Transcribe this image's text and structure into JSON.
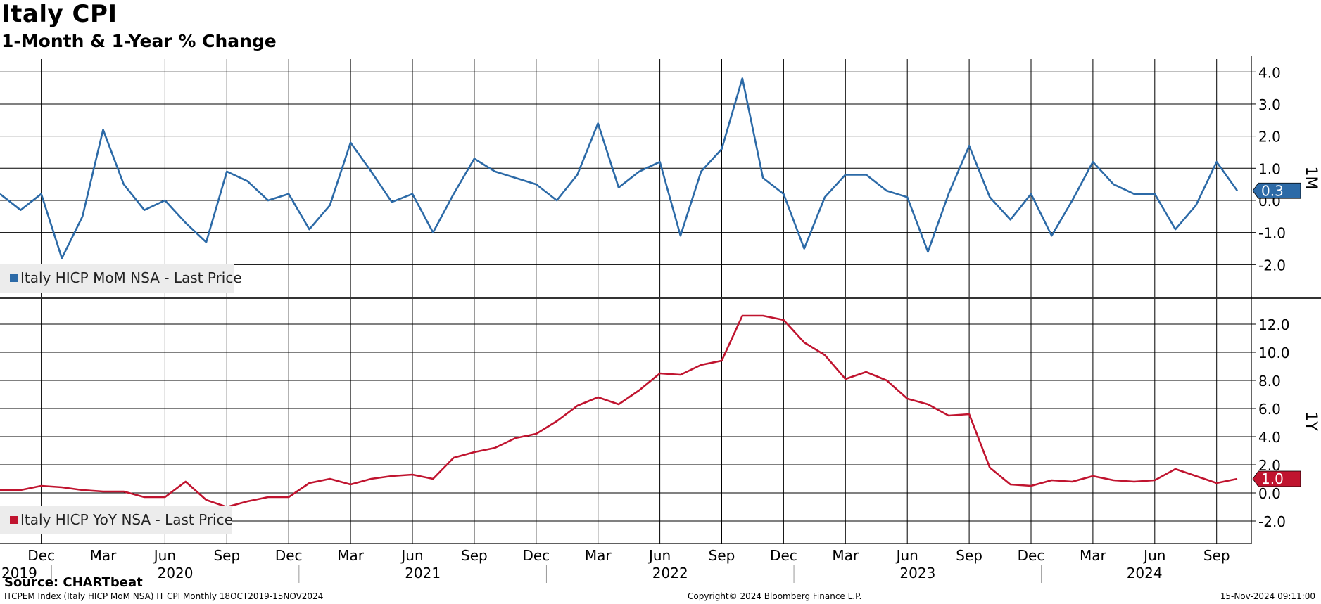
{
  "header": {
    "title": "Italy CPI",
    "subtitle": "1-Month & 1-Year % Change"
  },
  "footer": {
    "source": "Source: CHARTbeat",
    "query": "ITCPEM Index (Italy HICP MoM NSA) IT CPI  Monthly 18OCT2019-15NOV2024",
    "copyright": "Copyright© 2024 Bloomberg Finance L.P.",
    "timestamp": "15-Nov-2024 09:11:00"
  },
  "colors": {
    "mom": "#2c6aa7",
    "yoy": "#c0142f",
    "grid": "#000000"
  },
  "chart_data": [
    {
      "type": "line",
      "panel_label": "1M",
      "legend": "Italy HICP MoM NSA - Last Price",
      "legend_position": "bottom-left",
      "last_value_label": "0.3",
      "ylim": [
        -3.0,
        4.4
      ],
      "yticks": [
        {
          "value": 4.0,
          "label": "4.0"
        },
        {
          "value": 3.0,
          "label": "3.0"
        },
        {
          "value": 2.0,
          "label": "2.0"
        },
        {
          "value": 1.0,
          "label": "1.0"
        },
        {
          "value": 0.0,
          "label": "0.0"
        },
        {
          "value": -1.0,
          "label": "-1.0"
        },
        {
          "value": -2.0,
          "label": "-2.0"
        }
      ],
      "grid": true,
      "series": [
        {
          "name": "Italy HICP MoM NSA - Last Price",
          "start": "2019-10",
          "values": [
            0.2,
            -0.3,
            0.2,
            -1.8,
            -0.5,
            2.2,
            0.5,
            -0.3,
            0.0,
            -0.7,
            -1.3,
            0.9,
            0.6,
            0.0,
            0.2,
            -0.9,
            -0.15,
            1.8,
            0.9,
            -0.05,
            0.2,
            -1.0,
            0.2,
            1.3,
            0.9,
            0.7,
            0.5,
            0.0,
            0.8,
            2.4,
            0.4,
            0.9,
            1.2,
            -1.1,
            0.9,
            1.6,
            3.8,
            0.7,
            0.2,
            -1.5,
            0.1,
            0.8,
            0.8,
            0.3,
            0.1,
            -1.6,
            0.2,
            1.7,
            0.1,
            -0.6,
            0.2,
            -1.1,
            0.0,
            1.2,
            0.5,
            0.2,
            0.2,
            -0.9,
            -0.15,
            1.2,
            0.3
          ]
        }
      ]
    },
    {
      "type": "line",
      "panel_label": "1Y",
      "legend": "Italy HICP YoY NSA - Last Price",
      "legend_position": "bottom-left",
      "last_value_label": "1.0",
      "ylim": [
        -3.6,
        13.8
      ],
      "yticks": [
        {
          "value": 12.0,
          "label": "12.0"
        },
        {
          "value": 10.0,
          "label": "10.0"
        },
        {
          "value": 8.0,
          "label": "8.0"
        },
        {
          "value": 6.0,
          "label": "6.0"
        },
        {
          "value": 4.0,
          "label": "4.0"
        },
        {
          "value": 2.0,
          "label": "2.0"
        },
        {
          "value": 0.0,
          "label": "0.0"
        },
        {
          "value": -2.0,
          "label": "-2.0"
        }
      ],
      "grid": true,
      "series": [
        {
          "name": "Italy HICP YoY NSA - Last Price",
          "start": "2019-10",
          "values": [
            0.2,
            0.2,
            0.5,
            0.4,
            0.2,
            0.1,
            0.1,
            -0.3,
            -0.3,
            0.8,
            -0.5,
            -1.0,
            -0.6,
            -0.3,
            -0.3,
            0.7,
            1.0,
            0.6,
            1.0,
            1.2,
            1.3,
            1.0,
            2.5,
            2.9,
            3.2,
            3.9,
            4.2,
            5.1,
            6.2,
            6.8,
            6.3,
            7.3,
            8.5,
            8.4,
            9.1,
            9.4,
            12.6,
            12.6,
            12.3,
            10.7,
            9.8,
            8.1,
            8.6,
            8.0,
            6.7,
            6.3,
            5.5,
            5.6,
            1.8,
            0.6,
            0.5,
            0.9,
            0.8,
            1.2,
            0.9,
            0.8,
            0.9,
            1.7,
            1.2,
            0.7,
            1.0
          ]
        }
      ]
    }
  ],
  "x_axis": {
    "months": [
      {
        "index": 2,
        "label": "Dec"
      },
      {
        "index": 5,
        "label": "Mar"
      },
      {
        "index": 8,
        "label": "Jun"
      },
      {
        "index": 11,
        "label": "Sep"
      },
      {
        "index": 14,
        "label": "Dec"
      },
      {
        "index": 17,
        "label": "Mar"
      },
      {
        "index": 20,
        "label": "Jun"
      },
      {
        "index": 23,
        "label": "Sep"
      },
      {
        "index": 26,
        "label": "Dec"
      },
      {
        "index": 29,
        "label": "Mar"
      },
      {
        "index": 32,
        "label": "Jun"
      },
      {
        "index": 35,
        "label": "Sep"
      },
      {
        "index": 38,
        "label": "Dec"
      },
      {
        "index": 41,
        "label": "Mar"
      },
      {
        "index": 44,
        "label": "Jun"
      },
      {
        "index": 47,
        "label": "Sep"
      },
      {
        "index": 50,
        "label": "Dec"
      },
      {
        "index": 53,
        "label": "Mar"
      },
      {
        "index": 56,
        "label": "Jun"
      },
      {
        "index": 59,
        "label": "Sep"
      }
    ],
    "years": [
      {
        "label": "2019",
        "from": 0,
        "to": 2
      },
      {
        "label": "2020",
        "from": 3,
        "to": 14
      },
      {
        "label": "2021",
        "from": 15,
        "to": 26
      },
      {
        "label": "2022",
        "from": 27,
        "to": 38
      },
      {
        "label": "2023",
        "from": 39,
        "to": 50
      },
      {
        "label": "2024",
        "from": 51,
        "to": 60
      }
    ]
  }
}
